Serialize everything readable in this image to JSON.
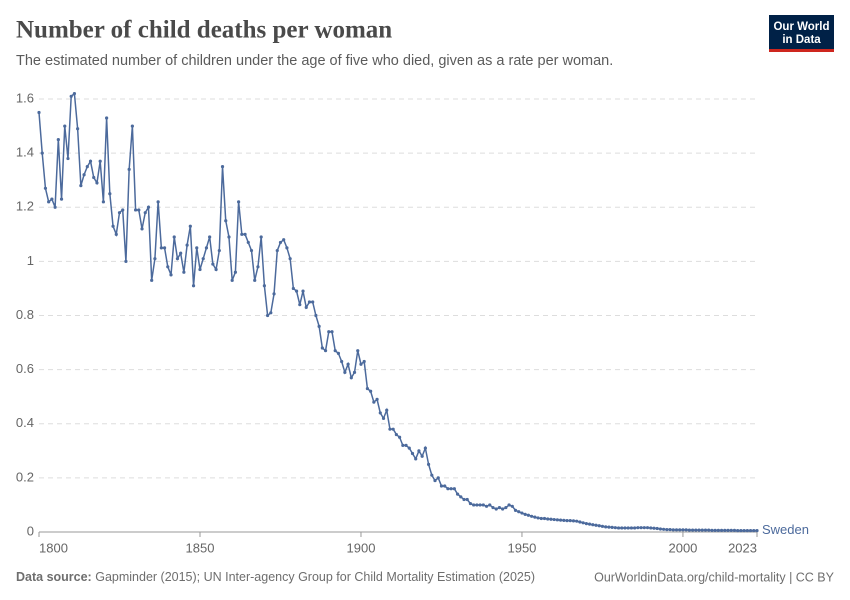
{
  "chart_data": {
    "type": "line",
    "title": "Number of child deaths per woman",
    "subtitle": "The estimated number of children under the age of five who died, given as a rate per woman.",
    "logo": [
      "Our World",
      "in Data"
    ],
    "source_label": "Data source:",
    "source": "Gapminder (2015); UN Inter-agency Group for Child Mortality Estimation (2025)",
    "credit": "OurWorldinData.org/child-mortality | CC BY",
    "xlim": [
      1800,
      2023
    ],
    "xticks": [
      1800,
      1850,
      1900,
      1950,
      2000,
      2023
    ],
    "ylim": [
      0,
      1.6
    ],
    "yticks": [
      0,
      0.2,
      0.4,
      0.6,
      0.8,
      1,
      1.2,
      1.4,
      1.6
    ],
    "grid": true,
    "x": [
      1800,
      1801,
      1802,
      1803,
      1804,
      1805,
      1806,
      1807,
      1808,
      1809,
      1810,
      1811,
      1812,
      1813,
      1814,
      1815,
      1816,
      1817,
      1818,
      1819,
      1820,
      1821,
      1822,
      1823,
      1824,
      1825,
      1826,
      1827,
      1828,
      1829,
      1830,
      1831,
      1832,
      1833,
      1834,
      1835,
      1836,
      1837,
      1838,
      1839,
      1840,
      1841,
      1842,
      1843,
      1844,
      1845,
      1846,
      1847,
      1848,
      1849,
      1850,
      1851,
      1852,
      1853,
      1854,
      1855,
      1856,
      1857,
      1858,
      1859,
      1860,
      1861,
      1862,
      1863,
      1864,
      1865,
      1866,
      1867,
      1868,
      1869,
      1870,
      1871,
      1872,
      1873,
      1874,
      1875,
      1876,
      1877,
      1878,
      1879,
      1880,
      1881,
      1882,
      1883,
      1884,
      1885,
      1886,
      1887,
      1888,
      1889,
      1890,
      1891,
      1892,
      1893,
      1894,
      1895,
      1896,
      1897,
      1898,
      1899,
      1900,
      1901,
      1902,
      1903,
      1904,
      1905,
      1906,
      1907,
      1908,
      1909,
      1910,
      1911,
      1912,
      1913,
      1914,
      1915,
      1916,
      1917,
      1918,
      1919,
      1920,
      1921,
      1922,
      1923,
      1924,
      1925,
      1926,
      1927,
      1928,
      1929,
      1930,
      1931,
      1932,
      1933,
      1934,
      1935,
      1936,
      1937,
      1938,
      1939,
      1940,
      1941,
      1942,
      1943,
      1944,
      1945,
      1946,
      1947,
      1948,
      1949,
      1950,
      1951,
      1952,
      1953,
      1954,
      1955,
      1956,
      1957,
      1958,
      1959,
      1960,
      1961,
      1962,
      1963,
      1964,
      1965,
      1966,
      1967,
      1968,
      1969,
      1970,
      1971,
      1972,
      1973,
      1974,
      1975,
      1976,
      1977,
      1978,
      1979,
      1980,
      1981,
      1982,
      1983,
      1984,
      1985,
      1986,
      1987,
      1988,
      1989,
      1990,
      1991,
      1992,
      1993,
      1994,
      1995,
      1996,
      1997,
      1998,
      1999,
      2000,
      2001,
      2002,
      2003,
      2004,
      2005,
      2006,
      2007,
      2008,
      2009,
      2010,
      2011,
      2012,
      2013,
      2014,
      2015,
      2016,
      2017,
      2018,
      2019,
      2020,
      2021,
      2022,
      2023
    ],
    "series": [
      {
        "name": "Sweden",
        "color": "#4c6a9c",
        "values": [
          1.55,
          1.4,
          1.27,
          1.22,
          1.23,
          1.2,
          1.45,
          1.23,
          1.5,
          1.38,
          1.61,
          1.62,
          1.49,
          1.28,
          1.32,
          1.35,
          1.37,
          1.31,
          1.29,
          1.37,
          1.22,
          1.53,
          1.25,
          1.13,
          1.1,
          1.18,
          1.19,
          1.0,
          1.34,
          1.5,
          1.19,
          1.19,
          1.12,
          1.18,
          1.2,
          0.93,
          1.01,
          1.22,
          1.05,
          1.05,
          0.98,
          0.95,
          1.09,
          1.01,
          1.03,
          0.96,
          1.06,
          1.13,
          0.91,
          1.05,
          0.97,
          1.01,
          1.05,
          1.09,
          0.99,
          0.97,
          1.04,
          1.35,
          1.15,
          1.09,
          0.93,
          0.96,
          1.22,
          1.1,
          1.1,
          1.07,
          1.04,
          0.93,
          0.98,
          1.09,
          0.91,
          0.8,
          0.81,
          0.88,
          1.04,
          1.07,
          1.08,
          1.05,
          1.01,
          0.9,
          0.89,
          0.84,
          0.89,
          0.83,
          0.85,
          0.85,
          0.8,
          0.76,
          0.68,
          0.67,
          0.74,
          0.74,
          0.67,
          0.66,
          0.63,
          0.59,
          0.62,
          0.57,
          0.59,
          0.67,
          0.62,
          0.63,
          0.53,
          0.52,
          0.48,
          0.49,
          0.44,
          0.42,
          0.45,
          0.38,
          0.38,
          0.36,
          0.35,
          0.32,
          0.32,
          0.31,
          0.29,
          0.27,
          0.3,
          0.28,
          0.31,
          0.25,
          0.21,
          0.19,
          0.2,
          0.17,
          0.17,
          0.16,
          0.16,
          0.16,
          0.14,
          0.13,
          0.12,
          0.12,
          0.105,
          0.1,
          0.1,
          0.1,
          0.1,
          0.095,
          0.1,
          0.09,
          0.085,
          0.09,
          0.085,
          0.09,
          0.1,
          0.095,
          0.08,
          0.075,
          0.07,
          0.065,
          0.062,
          0.058,
          0.055,
          0.052,
          0.05,
          0.05,
          0.048,
          0.047,
          0.046,
          0.045,
          0.044,
          0.043,
          0.042,
          0.042,
          0.041,
          0.04,
          0.037,
          0.034,
          0.031,
          0.029,
          0.027,
          0.025,
          0.023,
          0.021,
          0.019,
          0.018,
          0.017,
          0.016,
          0.015,
          0.015,
          0.015,
          0.015,
          0.015,
          0.015,
          0.016,
          0.016,
          0.016,
          0.016,
          0.015,
          0.014,
          0.013,
          0.011,
          0.01,
          0.009,
          0.009,
          0.008,
          0.008,
          0.008,
          0.008,
          0.008,
          0.007,
          0.007,
          0.007,
          0.007,
          0.007,
          0.007,
          0.007,
          0.006,
          0.006,
          0.006,
          0.006,
          0.006,
          0.006,
          0.006,
          0.006,
          0.005,
          0.005,
          0.005,
          0.005,
          0.005,
          0.005,
          0.005
        ]
      }
    ]
  }
}
